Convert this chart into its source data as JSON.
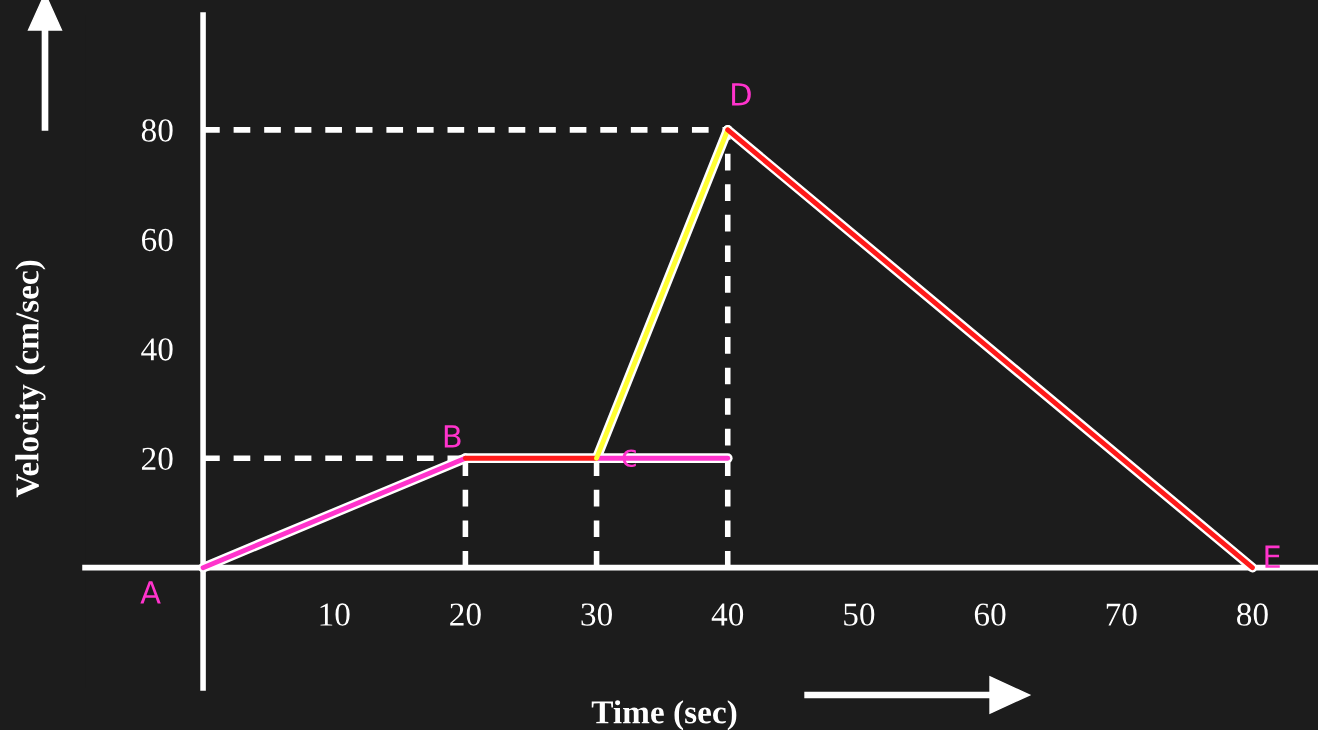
{
  "chart_data": {
    "type": "line",
    "xlabel": "Time (sec)",
    "ylabel": "Velocity (cm/sec)",
    "xlim": [
      -9,
      85
    ],
    "ylim": [
      -22,
      101
    ],
    "xticks": [
      10,
      20,
      30,
      40,
      50,
      60,
      70,
      80
    ],
    "yticks": [
      20,
      40,
      60,
      80
    ],
    "grid": false,
    "legend": false,
    "marker": "none",
    "series": [
      {
        "x": [
          0,
          40
        ],
        "values": [
          80,
          80
        ],
        "color": "#ffffff",
        "line_style": "dashed"
      },
      {
        "x": [
          0,
          20
        ],
        "values": [
          20,
          20
        ],
        "color": "#ffffff",
        "line_style": "dashed"
      },
      {
        "x": [
          20,
          20
        ],
        "values": [
          0,
          20
        ],
        "color": "#ffffff",
        "line_style": "dashed"
      },
      {
        "x": [
          30,
          30
        ],
        "values": [
          0,
          20
        ],
        "color": "#ffffff",
        "line_style": "dashed"
      },
      {
        "x": [
          40,
          40
        ],
        "values": [
          0,
          80
        ],
        "color": "#ffffff",
        "line_style": "dashed"
      },
      {
        "x": [
          30,
          40
        ],
        "values": [
          20,
          20
        ],
        "color": "#ff33cc",
        "line_style": "solid"
      },
      {
        "x": [
          0,
          20
        ],
        "values": [
          0,
          20
        ],
        "color": "#ff33cc",
        "line_style": "solid"
      },
      {
        "x": [
          20,
          30
        ],
        "values": [
          20,
          20
        ],
        "color": "#ff1a1a",
        "line_style": "solid"
      },
      {
        "x": [
          30,
          40
        ],
        "values": [
          20,
          80
        ],
        "color": "#ffff33",
        "line_style": "solid"
      },
      {
        "x": [
          40,
          80
        ],
        "values": [
          80,
          0
        ],
        "color": "#ff1a1a",
        "line_style": "solid"
      }
    ],
    "annotations": [
      {
        "text": "A",
        "x": 0,
        "y": 0
      },
      {
        "text": "B",
        "x": 20,
        "y": 20
      },
      {
        "text": "c",
        "x": 30,
        "y": 20
      },
      {
        "text": "D",
        "x": 40,
        "y": 80
      },
      {
        "text": "E",
        "x": 80,
        "y": 0
      }
    ]
  }
}
